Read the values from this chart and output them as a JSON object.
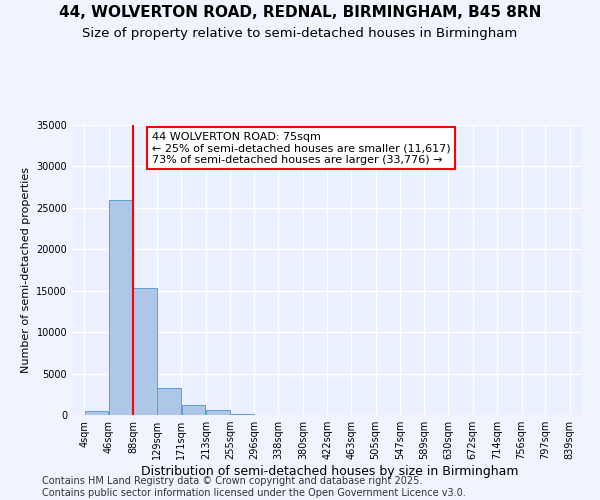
{
  "title": "44, WOLVERTON ROAD, REDNAL, BIRMINGHAM, B45 8RN",
  "subtitle": "Size of property relative to semi-detached houses in Birmingham",
  "xlabel": "Distribution of semi-detached houses by size in Birmingham",
  "ylabel": "Number of semi-detached properties",
  "bins": [
    4,
    46,
    88,
    129,
    171,
    213,
    255,
    296,
    338,
    380,
    422,
    463,
    505,
    547,
    589,
    630,
    672,
    714,
    756,
    797,
    839
  ],
  "bin_labels": [
    "4sqm",
    "46sqm",
    "88sqm",
    "129sqm",
    "171sqm",
    "213sqm",
    "255sqm",
    "296sqm",
    "338sqm",
    "380sqm",
    "422sqm",
    "463sqm",
    "505sqm",
    "547sqm",
    "589sqm",
    "630sqm",
    "672sqm",
    "714sqm",
    "756sqm",
    "797sqm",
    "839sqm"
  ],
  "bar_heights": [
    500,
    26000,
    15300,
    3300,
    1200,
    600,
    100,
    50,
    25,
    10,
    5,
    2,
    1,
    0,
    0,
    0,
    0,
    0,
    0,
    0
  ],
  "bar_color": "#aec6e8",
  "bar_edge_color": "#5a9fd4",
  "red_line_x": 88,
  "annotation_title": "44 WOLVERTON ROAD: 75sqm",
  "annotation_line1": "← 25% of semi-detached houses are smaller (11,617)",
  "annotation_line2": "73% of semi-detached houses are larger (33,776) →",
  "ylim": [
    0,
    35000
  ],
  "yticks": [
    0,
    5000,
    10000,
    15000,
    20000,
    25000,
    30000,
    35000
  ],
  "background_color": "#f0f4ff",
  "plot_bg_color": "#eaf0ff",
  "grid_color": "#ffffff",
  "footer_line1": "Contains HM Land Registry data © Crown copyright and database right 2025.",
  "footer_line2": "Contains public sector information licensed under the Open Government Licence v3.0.",
  "title_fontsize": 11,
  "subtitle_fontsize": 9.5,
  "xlabel_fontsize": 9,
  "ylabel_fontsize": 8,
  "tick_fontsize": 7,
  "footer_fontsize": 7,
  "annot_fontsize": 8
}
